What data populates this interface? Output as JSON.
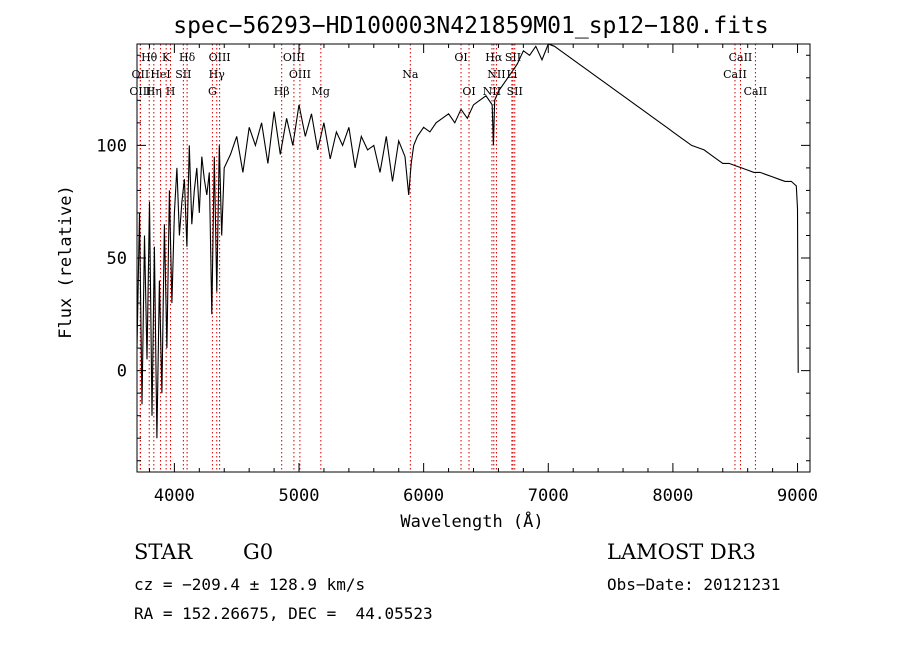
{
  "chart_data": {
    "type": "line",
    "title": "spec−56293−HD100003N421859M01_sp12−180.fits",
    "xlabel": "Wavelength (Å)",
    "ylabel": "Flux (relative)",
    "xlim": [
      3700,
      9100
    ],
    "ylim": [
      -45,
      145
    ],
    "x_ticks": [
      4000,
      5000,
      6000,
      7000,
      8000,
      9000
    ],
    "y_ticks": [
      0,
      50,
      100
    ],
    "series": [
      {
        "name": "flux",
        "x": [
          3700,
          3720,
          3740,
          3760,
          3780,
          3800,
          3820,
          3840,
          3860,
          3880,
          3900,
          3920,
          3940,
          3960,
          3980,
          4000,
          4020,
          4040,
          4060,
          4080,
          4100,
          4120,
          4140,
          4160,
          4180,
          4200,
          4220,
          4240,
          4260,
          4280,
          4300,
          4320,
          4340,
          4360,
          4380,
          4400,
          4450,
          4500,
          4550,
          4600,
          4650,
          4700,
          4750,
          4800,
          4850,
          4900,
          4950,
          5000,
          5050,
          5100,
          5150,
          5200,
          5250,
          5300,
          5350,
          5400,
          5450,
          5500,
          5550,
          5600,
          5650,
          5700,
          5750,
          5800,
          5850,
          5880,
          5900,
          5920,
          5950,
          6000,
          6050,
          6100,
          6150,
          6200,
          6250,
          6300,
          6350,
          6400,
          6450,
          6500,
          6550,
          6560,
          6570,
          6600,
          6650,
          6700,
          6750,
          6800,
          6850,
          6900,
          6950,
          7000,
          7050,
          7100,
          7150,
          7200,
          7250,
          7300,
          7350,
          7400,
          7450,
          7500,
          7550,
          7600,
          7650,
          7700,
          7750,
          7800,
          7850,
          7900,
          7950,
          8000,
          8050,
          8100,
          8150,
          8200,
          8250,
          8300,
          8350,
          8400,
          8450,
          8500,
          8550,
          8600,
          8650,
          8700,
          8750,
          8800,
          8850,
          8900,
          8950,
          8990,
          9000,
          9005
        ],
        "y": [
          10,
          70,
          -15,
          60,
          5,
          75,
          -20,
          55,
          -30,
          40,
          -10,
          65,
          10,
          80,
          30,
          70,
          90,
          60,
          75,
          85,
          55,
          100,
          65,
          80,
          90,
          70,
          95,
          85,
          78,
          88,
          25,
          95,
          35,
          100,
          60,
          90,
          96,
          104,
          88,
          108,
          100,
          110,
          92,
          115,
          96,
          112,
          100,
          118,
          104,
          114,
          98,
          110,
          94,
          106,
          100,
          108,
          90,
          104,
          98,
          100,
          88,
          104,
          84,
          102,
          95,
          78,
          92,
          100,
          104,
          108,
          106,
          110,
          112,
          114,
          110,
          116,
          112,
          118,
          120,
          122,
          118,
          100,
          120,
          124,
          128,
          132,
          136,
          142,
          140,
          144,
          138,
          146,
          144,
          142,
          140,
          138,
          136,
          134,
          132,
          130,
          128,
          126,
          124,
          122,
          120,
          118,
          116,
          114,
          112,
          110,
          108,
          106,
          104,
          102,
          100,
          99,
          98,
          96,
          94,
          92,
          92,
          91,
          90,
          89,
          88,
          88,
          87,
          86,
          85,
          84,
          84,
          82,
          72,
          -1
        ]
      }
    ],
    "spectral_lines": [
      {
        "label": "Hθ",
        "wl": 3798,
        "row": 1
      },
      {
        "label": "K",
        "wl": 3934,
        "row": 1
      },
      {
        "label": "Hδ",
        "wl": 4102,
        "row": 1
      },
      {
        "label": "OIII",
        "wl": 4363,
        "row": 1
      },
      {
        "label": "OIII",
        "wl": 4959,
        "row": 1
      },
      {
        "label": "OI",
        "wl": 6300,
        "row": 1
      },
      {
        "label": "Hα",
        "wl": 6563,
        "row": 1
      },
      {
        "label": "SII",
        "wl": 6717,
        "row": 1
      },
      {
        "label": "CaII",
        "wl": 8542,
        "row": 1
      },
      {
        "label": "OII",
        "wl": 3727,
        "row": 2
      },
      {
        "label": "HeI",
        "wl": 3889,
        "row": 2
      },
      {
        "label": "SII",
        "wl": 4072,
        "row": 2
      },
      {
        "label": "Hγ",
        "wl": 4340,
        "row": 2
      },
      {
        "label": "OIII",
        "wl": 5007,
        "row": 2
      },
      {
        "label": "Na",
        "wl": 5893,
        "row": 2
      },
      {
        "label": "NII",
        "wl": 6584,
        "row": 2
      },
      {
        "label": "Li",
        "wl": 6708,
        "row": 2
      },
      {
        "label": "CaII",
        "wl": 8498,
        "row": 2
      },
      {
        "label": "OIII",
        "wl": 3727,
        "row": 3
      },
      {
        "label": "Hη",
        "wl": 3835,
        "row": 3
      },
      {
        "label": "H",
        "wl": 3969,
        "row": 3
      },
      {
        "label": "G",
        "wl": 4305,
        "row": 3
      },
      {
        "label": "Hβ",
        "wl": 4861,
        "row": 3
      },
      {
        "label": "Mg",
        "wl": 5175,
        "row": 3
      },
      {
        "label": "OI",
        "wl": 6364,
        "row": 3
      },
      {
        "label": "NII",
        "wl": 6548,
        "row": 3
      },
      {
        "label": "SII",
        "wl": 6731,
        "row": 3
      },
      {
        "label": "CaII",
        "wl": 8662,
        "row": 3
      }
    ],
    "line_color": "#000000",
    "marker_color": "#cc0000"
  },
  "info": {
    "object_class": "STAR",
    "subclass": "G0",
    "survey": "LAMOST DR3",
    "cz": "cz = −209.4 ± 128.9 km/s",
    "obs_date": "Obs−Date: 20121231",
    "coords": "RA = 152.26675, DEC =  44.05523"
  }
}
